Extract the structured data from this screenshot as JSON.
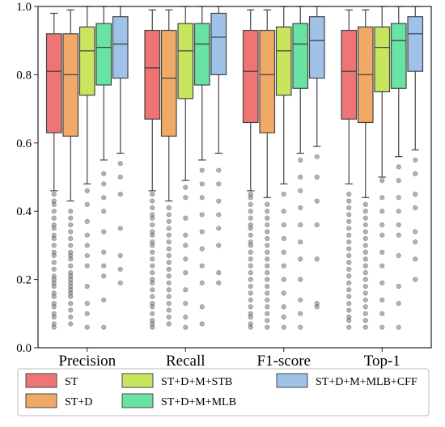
{
  "chart_data": {
    "type": "box",
    "categories": [
      "Precision",
      "Recall",
      "F1-score",
      "Top-1"
    ],
    "ylim": [
      0.0,
      1.0
    ],
    "yticks": [
      "0.0",
      "0.2",
      "0.4",
      "0.6",
      "0.8",
      "1.0"
    ],
    "grid": false,
    "legend_position": "bottom",
    "colors": [
      "#ef7575",
      "#f0a966",
      "#c7e65d",
      "#67e3a3",
      "#9fc2e8"
    ],
    "outlier_color": "#555555",
    "series": [
      {
        "name": "ST",
        "stats": [
          {
            "whislo": 0.46,
            "q1": 0.63,
            "med": 0.81,
            "q3": 0.92,
            "whishi": 0.98
          },
          {
            "whislo": 0.46,
            "q1": 0.67,
            "med": 0.82,
            "q3": 0.93,
            "whishi": 0.99
          },
          {
            "whislo": 0.46,
            "q1": 0.66,
            "med": 0.81,
            "q3": 0.93,
            "whishi": 0.99
          },
          {
            "whislo": 0.48,
            "q1": 0.67,
            "med": 0.81,
            "q3": 0.93,
            "whishi": 0.99
          }
        ],
        "outliers": [
          [
            0.06,
            0.07,
            0.09,
            0.1,
            0.12,
            0.13,
            0.15,
            0.16,
            0.18,
            0.19,
            0.2,
            0.21,
            0.23,
            0.25,
            0.27,
            0.28,
            0.3,
            0.32,
            0.33,
            0.35,
            0.36,
            0.38,
            0.4,
            0.42,
            0.43,
            0.45
          ],
          [
            0.06,
            0.07,
            0.08,
            0.1,
            0.12,
            0.13,
            0.15,
            0.17,
            0.19,
            0.2,
            0.22,
            0.24,
            0.26,
            0.28,
            0.3,
            0.31,
            0.33,
            0.34,
            0.36,
            0.38,
            0.39,
            0.41,
            0.43,
            0.45
          ],
          [
            0.06,
            0.07,
            0.09,
            0.1,
            0.12,
            0.14,
            0.16,
            0.18,
            0.2,
            0.22,
            0.24,
            0.26,
            0.28,
            0.3,
            0.31,
            0.33,
            0.35,
            0.36,
            0.38,
            0.4,
            0.42,
            0.44,
            0.45
          ],
          [
            0.06,
            0.08,
            0.09,
            0.11,
            0.13,
            0.15,
            0.17,
            0.19,
            0.21,
            0.23,
            0.25,
            0.27,
            0.29,
            0.31,
            0.33,
            0.35,
            0.37,
            0.39,
            0.41,
            0.43,
            0.45
          ]
        ]
      },
      {
        "name": "ST+D",
        "stats": [
          {
            "whislo": 0.43,
            "q1": 0.62,
            "med": 0.8,
            "q3": 0.92,
            "whishi": 0.99
          },
          {
            "whislo": 0.43,
            "q1": 0.62,
            "med": 0.79,
            "q3": 0.93,
            "whishi": 0.99
          },
          {
            "whislo": 0.44,
            "q1": 0.63,
            "med": 0.8,
            "q3": 0.93,
            "whishi": 0.99
          },
          {
            "whislo": 0.44,
            "q1": 0.66,
            "med": 0.8,
            "q3": 0.94,
            "whishi": 0.99
          }
        ],
        "outliers": [
          [
            0.07,
            0.09,
            0.11,
            0.13,
            0.15,
            0.16,
            0.17,
            0.18,
            0.19,
            0.2,
            0.21,
            0.22,
            0.24,
            0.26,
            0.27,
            0.28,
            0.3,
            0.32,
            0.34,
            0.36,
            0.38,
            0.4
          ],
          [
            0.07,
            0.09,
            0.11,
            0.13,
            0.15,
            0.17,
            0.19,
            0.21,
            0.23,
            0.25,
            0.27,
            0.29,
            0.31,
            0.33,
            0.35,
            0.37,
            0.39,
            0.41
          ],
          [
            0.06,
            0.08,
            0.1,
            0.12,
            0.14,
            0.16,
            0.18,
            0.2,
            0.22,
            0.24,
            0.26,
            0.28,
            0.3,
            0.32,
            0.34,
            0.36,
            0.38,
            0.4,
            0.42
          ],
          [
            0.06,
            0.08,
            0.1,
            0.12,
            0.14,
            0.16,
            0.18,
            0.2,
            0.22,
            0.24,
            0.26,
            0.28,
            0.3,
            0.32,
            0.34,
            0.36,
            0.38,
            0.4,
            0.42
          ]
        ]
      },
      {
        "name": "ST+D+M+STB",
        "stats": [
          {
            "whislo": 0.48,
            "q1": 0.74,
            "med": 0.87,
            "q3": 0.94,
            "whishi": 1.0
          },
          {
            "whislo": 0.49,
            "q1": 0.73,
            "med": 0.87,
            "q3": 0.95,
            "whishi": 1.0
          },
          {
            "whislo": 0.48,
            "q1": 0.74,
            "med": 0.87,
            "q3": 0.94,
            "whishi": 1.0
          },
          {
            "whislo": 0.5,
            "q1": 0.75,
            "med": 0.88,
            "q3": 0.94,
            "whishi": 1.0
          }
        ],
        "outliers": [
          [
            0.06,
            0.1,
            0.13,
            0.18,
            0.24,
            0.27,
            0.3,
            0.33,
            0.37,
            0.42,
            0.46
          ],
          [
            0.06,
            0.09,
            0.13,
            0.17,
            0.22,
            0.26,
            0.3,
            0.33,
            0.38,
            0.44,
            0.47
          ],
          [
            0.06,
            0.09,
            0.12,
            0.16,
            0.2,
            0.24,
            0.28,
            0.32,
            0.36,
            0.4,
            0.45
          ],
          [
            0.06,
            0.1,
            0.14,
            0.19,
            0.24,
            0.28,
            0.33,
            0.36,
            0.4,
            0.44,
            0.49
          ]
        ]
      },
      {
        "name": "ST+D+M+MLB",
        "stats": [
          {
            "whislo": 0.55,
            "q1": 0.77,
            "med": 0.88,
            "q3": 0.95,
            "whishi": 1.0
          },
          {
            "whislo": 0.55,
            "q1": 0.77,
            "med": 0.89,
            "q3": 0.95,
            "whishi": 1.0
          },
          {
            "whislo": 0.57,
            "q1": 0.76,
            "med": 0.89,
            "q3": 0.95,
            "whishi": 1.0
          },
          {
            "whislo": 0.56,
            "q1": 0.76,
            "med": 0.9,
            "q3": 0.95,
            "whishi": 1.0
          }
        ],
        "outliers": [
          [
            0.06,
            0.14,
            0.21,
            0.24,
            0.28,
            0.34,
            0.4,
            0.44,
            0.48,
            0.51
          ],
          [
            0.07,
            0.12,
            0.19,
            0.24,
            0.29,
            0.34,
            0.39,
            0.44,
            0.48,
            0.52
          ],
          [
            0.06,
            0.1,
            0.14,
            0.2,
            0.26,
            0.31,
            0.36,
            0.41,
            0.46,
            0.5,
            0.55
          ],
          [
            0.06,
            0.13,
            0.18,
            0.27,
            0.33,
            0.36,
            0.4,
            0.44,
            0.49,
            0.53
          ]
        ]
      },
      {
        "name": "ST+D+M+MLB+CFF",
        "stats": [
          {
            "whislo": 0.57,
            "q1": 0.79,
            "med": 0.89,
            "q3": 0.97,
            "whishi": 1.0
          },
          {
            "whislo": 0.57,
            "q1": 0.8,
            "med": 0.91,
            "q3": 0.98,
            "whishi": 1.0
          },
          {
            "whislo": 0.59,
            "q1": 0.79,
            "med": 0.9,
            "q3": 0.97,
            "whishi": 1.0
          },
          {
            "whislo": 0.58,
            "q1": 0.81,
            "med": 0.92,
            "q3": 0.97,
            "whishi": 1.0
          }
        ],
        "outliers": [
          [
            0.19,
            0.23,
            0.27,
            0.35,
            0.45,
            0.5,
            0.54
          ],
          [
            0.19,
            0.22,
            0.3,
            0.35,
            0.39,
            0.43,
            0.48,
            0.52
          ],
          [
            0.12,
            0.13,
            0.26,
            0.36,
            0.43,
            0.5,
            0.56
          ],
          [
            0.2,
            0.26,
            0.31,
            0.34,
            0.41,
            0.45,
            0.51,
            0.55
          ]
        ]
      }
    ]
  }
}
